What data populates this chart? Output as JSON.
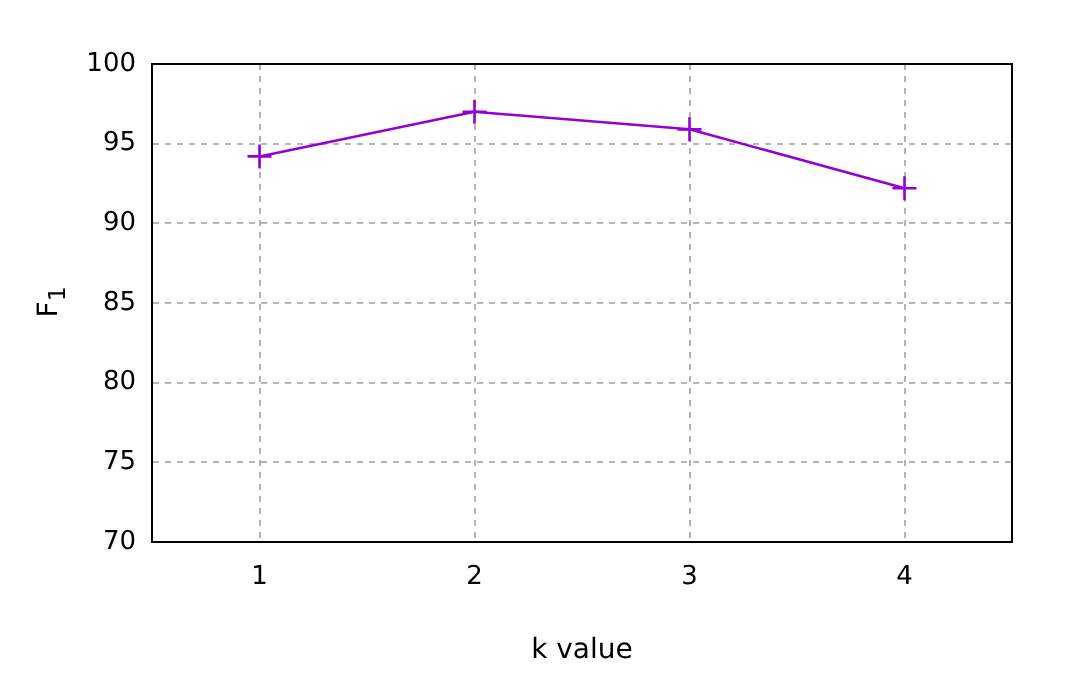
{
  "chart_data": {
    "type": "line",
    "xlabel": "k value",
    "ylabel": "F$_{1}$",
    "x": [
      1,
      2,
      3,
      4
    ],
    "series": [
      {
        "color": "#9400d3",
        "values": [
          94.2,
          97.0,
          95.9,
          92.2
        ]
      }
    ],
    "xlim": [
      0.5,
      4.5
    ],
    "xticks": [
      1,
      2,
      3,
      4
    ],
    "ylim": [
      70,
      100
    ],
    "yticks": [
      70,
      75,
      80,
      85,
      90,
      95,
      100
    ],
    "grid": true,
    "legend": false,
    "marker": "cross",
    "line_style": "solid"
  }
}
